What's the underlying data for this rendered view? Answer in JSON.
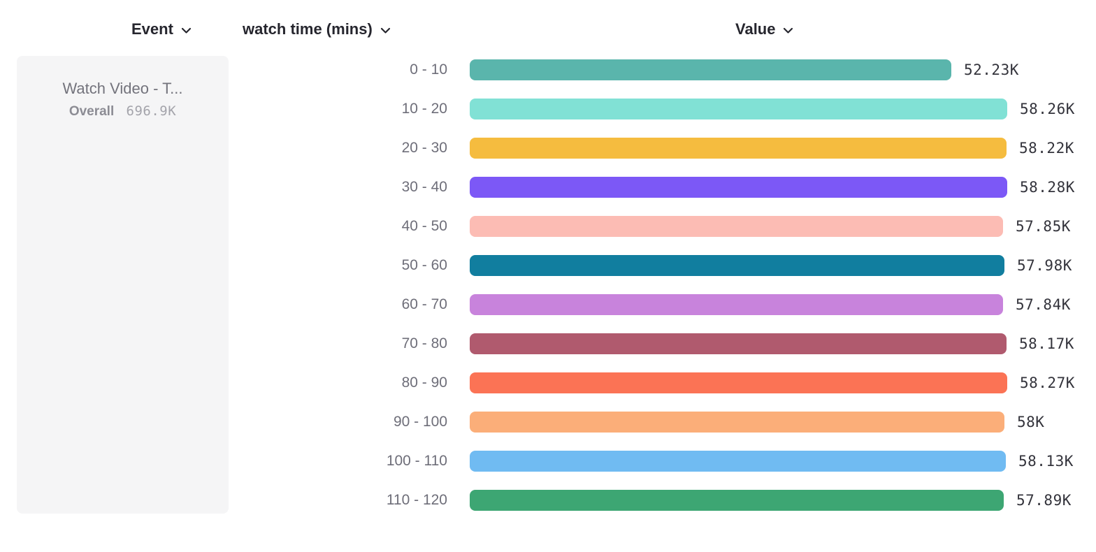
{
  "header": {
    "columns": [
      {
        "label": "Event"
      },
      {
        "label": "watch time (mins)"
      },
      {
        "label": "Value"
      }
    ]
  },
  "event_panel": {
    "title": "Watch Video - T...",
    "overall_label": "Overall",
    "overall_value": "696.9K"
  },
  "chart_data": {
    "type": "bar",
    "orientation": "horizontal",
    "title": "",
    "xlabel": "Value",
    "ylabel": "watch time (mins)",
    "event": "Watch Video - T...",
    "overall_total": "696.9K",
    "grid": false,
    "legend": false,
    "categories": [
      "0 - 10",
      "10 - 20",
      "20 - 30",
      "30 - 40",
      "40 - 50",
      "50 - 60",
      "60 - 70",
      "70 - 80",
      "80 - 90",
      "90 - 100",
      "100 - 110",
      "110 - 120"
    ],
    "values_thousands": [
      52.23,
      58.26,
      58.22,
      58.28,
      57.85,
      57.98,
      57.84,
      58.17,
      58.27,
      58.0,
      58.13,
      57.89
    ],
    "value_labels": [
      "52.23K",
      "58.26K",
      "58.22K",
      "58.28K",
      "57.85K",
      "57.98K",
      "57.84K",
      "58.17K",
      "58.27K",
      "58K",
      "58.13K",
      "57.89K"
    ],
    "bar_colors": [
      "#5ab5ac",
      "#81e1d5",
      "#f5bc3f",
      "#7c58f6",
      "#fcbcb4",
      "#117e9f",
      "#c883dc",
      "#b05a6e",
      "#fb7355",
      "#fbae79",
      "#70bbf2",
      "#3da673"
    ]
  }
}
